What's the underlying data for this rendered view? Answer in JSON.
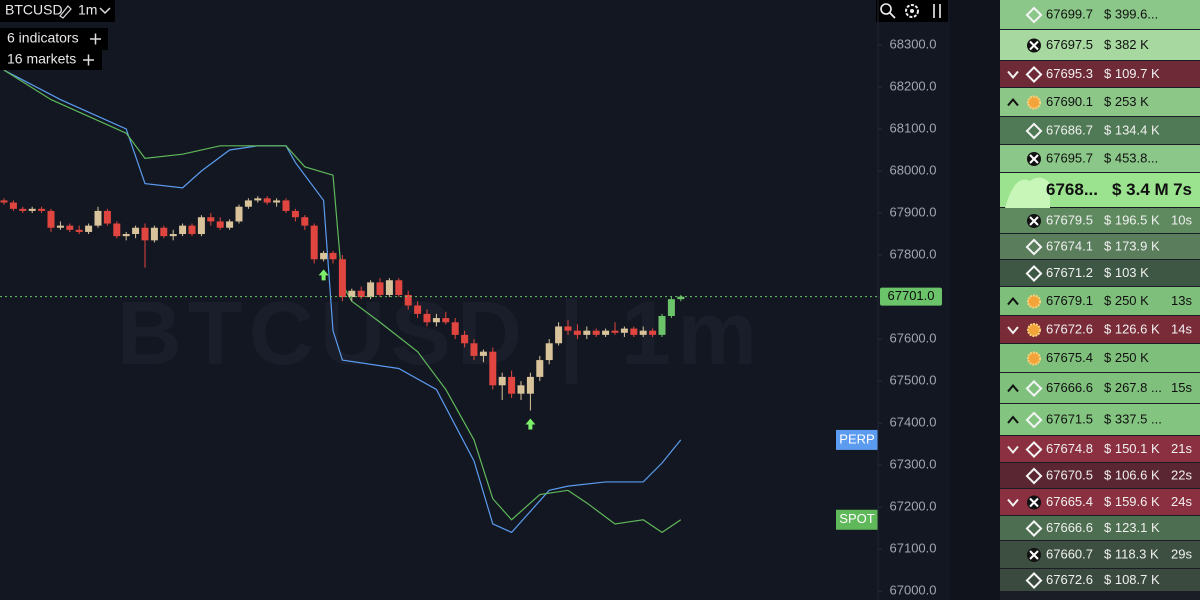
{
  "header": {
    "symbol": "BTCUSD",
    "timeframe": "1m",
    "indicators": "6 indicators",
    "markets": "16 markets"
  },
  "chart": {
    "watermark": "BTCUSD | 1m",
    "ylim": [
      66979,
      68407
    ],
    "yticks": [
      {
        "value": 67000,
        "label": "67000.0"
      },
      {
        "value": 67100,
        "label": "67100.0"
      },
      {
        "value": 67200,
        "label": "67200.0"
      },
      {
        "value": 67300,
        "label": "67300.0"
      },
      {
        "value": 67400,
        "label": "67400.0"
      },
      {
        "value": 67500,
        "label": "67500.0"
      },
      {
        "value": 67600,
        "label": "67600.0"
      },
      {
        "value": 67700,
        "label": "67700.0"
      },
      {
        "value": 67800,
        "label": "67800.0"
      },
      {
        "value": 67900,
        "label": "67900.0"
      },
      {
        "value": 68000,
        "label": "68000.0"
      },
      {
        "value": 68100,
        "label": "68100.0"
      },
      {
        "value": 68200,
        "label": "68200.0"
      },
      {
        "value": 68300,
        "label": "68300.0"
      }
    ],
    "last_price": {
      "value": 67701,
      "label": "67701.0"
    },
    "last_color": "#6cc46a",
    "up_color": "#d8c39b",
    "down_color": "#e0463f",
    "signal_color": "#7cf06a",
    "candles": [
      [
        67930,
        67935,
        67920,
        67925
      ],
      [
        67925,
        67930,
        67905,
        67910
      ],
      [
        67910,
        67915,
        67900,
        67905
      ],
      [
        67905,
        67915,
        67900,
        67910
      ],
      [
        67910,
        67915,
        67900,
        67905
      ],
      [
        67905,
        67910,
        67855,
        67865
      ],
      [
        67865,
        67880,
        67860,
        67870
      ],
      [
        67870,
        67875,
        67855,
        67860
      ],
      [
        67860,
        67870,
        67850,
        67855
      ],
      [
        67855,
        67875,
        67850,
        67870
      ],
      [
        67870,
        67915,
        67865,
        67905
      ],
      [
        67905,
        67910,
        67870,
        67875
      ],
      [
        67875,
        67880,
        67840,
        67845
      ],
      [
        67845,
        67855,
        67835,
        67850
      ],
      [
        67850,
        67870,
        67840,
        67865
      ],
      [
        67865,
        67875,
        67770,
        67835
      ],
      [
        67835,
        67870,
        67830,
        67865
      ],
      [
        67865,
        67870,
        67840,
        67845
      ],
      [
        67845,
        67860,
        67835,
        67850
      ],
      [
        67850,
        67875,
        67845,
        67870
      ],
      [
        67870,
        67875,
        67845,
        67850
      ],
      [
        67850,
        67895,
        67845,
        67890
      ],
      [
        67890,
        67900,
        67870,
        67880
      ],
      [
        67880,
        67890,
        67860,
        67865
      ],
      [
        67865,
        67885,
        67860,
        67880
      ],
      [
        67880,
        67920,
        67875,
        67915
      ],
      [
        67915,
        67935,
        67910,
        67930
      ],
      [
        67930,
        67940,
        67925,
        67935
      ],
      [
        67935,
        67940,
        67920,
        67925
      ],
      [
        67925,
        67935,
        67915,
        67930
      ],
      [
        67930,
        67935,
        67900,
        67905
      ],
      [
        67905,
        67910,
        67880,
        67890
      ],
      [
        67890,
        67895,
        67860,
        67870
      ],
      [
        67870,
        67875,
        67780,
        67790
      ],
      [
        67790,
        67810,
        67785,
        67805
      ],
      [
        67805,
        67810,
        67780,
        67790
      ],
      [
        67790,
        67800,
        67690,
        67700
      ],
      [
        67700,
        67720,
        67690,
        67715
      ],
      [
        67715,
        67725,
        67695,
        67700
      ],
      [
        67700,
        67740,
        67695,
        67735
      ],
      [
        67735,
        67745,
        67700,
        67705
      ],
      [
        67705,
        67745,
        67700,
        67740
      ],
      [
        67740,
        67745,
        67700,
        67705
      ],
      [
        67705,
        67715,
        67670,
        67680
      ],
      [
        67680,
        67690,
        67650,
        67660
      ],
      [
        67660,
        67670,
        67630,
        67640
      ],
      [
        67640,
        67660,
        67630,
        67650
      ],
      [
        67650,
        67665,
        67635,
        67640
      ],
      [
        67640,
        67650,
        67600,
        67610
      ],
      [
        67610,
        67620,
        67580,
        67590
      ],
      [
        67590,
        67600,
        67550,
        67560
      ],
      [
        67560,
        67575,
        67545,
        67570
      ],
      [
        67570,
        67580,
        67480,
        67490
      ],
      [
        67490,
        67520,
        67455,
        67510
      ],
      [
        67510,
        67525,
        67460,
        67470
      ],
      [
        67470,
        67500,
        67455,
        67490
      ],
      [
        67470,
        67520,
        67430,
        67510
      ],
      [
        67510,
        67560,
        67500,
        67550
      ],
      [
        67550,
        67600,
        67540,
        67590
      ],
      [
        67590,
        67640,
        67585,
        67630
      ],
      [
        67630,
        67645,
        67610,
        67620
      ],
      [
        67620,
        67635,
        67600,
        67610
      ],
      [
        67610,
        67630,
        67600,
        67620
      ],
      [
        67620,
        67625,
        67605,
        67610
      ],
      [
        67610,
        67625,
        67605,
        67620
      ],
      [
        67620,
        67640,
        67610,
        67615
      ],
      [
        67615,
        67630,
        67605,
        67625
      ],
      [
        67625,
        67630,
        67605,
        67610
      ],
      [
        67610,
        67630,
        67605,
        67620
      ],
      [
        67620,
        67625,
        67605,
        67610
      ],
      [
        67610,
        67660,
        67605,
        67655
      ],
      [
        67655,
        67700,
        67650,
        67695
      ],
      [
        67695,
        67705,
        67690,
        67701
      ]
    ],
    "signals": [
      34,
      56
    ],
    "series": [
      {
        "name": "PERP",
        "color": "#5b9cf0",
        "x": [
          0,
          6,
          13,
          15,
          19,
          21,
          24,
          27,
          30,
          31,
          34,
          35,
          36,
          42,
          46,
          50,
          52,
          54,
          58,
          60,
          64,
          68,
          70,
          72
        ],
        "values": [
          68240,
          68170,
          68100,
          67970,
          67960,
          68000,
          68050,
          68060,
          68060,
          68020,
          67930,
          67620,
          67550,
          67530,
          67480,
          67310,
          67160,
          67140,
          67240,
          67250,
          67260,
          67260,
          67305,
          67360
        ]
      },
      {
        "name": "SPOT",
        "color": "#5fb85a",
        "x": [
          0,
          5,
          13,
          15,
          19,
          23,
          30,
          32,
          35,
          36,
          37,
          40,
          44,
          47,
          50,
          52,
          54,
          57,
          60,
          62,
          65,
          68,
          70,
          72
        ],
        "values": [
          68240,
          68170,
          68090,
          68030,
          68040,
          68060,
          68060,
          68010,
          67990,
          67730,
          67690,
          67640,
          67570,
          67480,
          67360,
          67220,
          67170,
          67230,
          67240,
          67210,
          67160,
          67170,
          67140,
          67170
        ]
      }
    ]
  },
  "trades": {
    "rows": [
      {
        "price": "67699.7",
        "amount": "$ 399.6..."
      },
      {
        "price": "67697.5",
        "amount": "$ 382 K"
      },
      {
        "price": "67695.3",
        "amount": "$ 109.7 K"
      },
      {
        "price": "67690.1",
        "amount": "$ 253 K"
      },
      {
        "price": "67686.7",
        "amount": "$ 134.4 K"
      },
      {
        "price": "67695.7",
        "amount": "$ 453.8..."
      },
      {
        "price": "6768...",
        "amount": "$ 3.4 M",
        "age": "7s"
      },
      {
        "price": "67679.5",
        "amount": "$ 196.5 K",
        "age": "10s"
      },
      {
        "price": "67674.1",
        "amount": "$ 173.9 K"
      },
      {
        "price": "67671.2",
        "amount": "$ 103 K"
      },
      {
        "price": "67679.1",
        "amount": "$ 250 K",
        "age": "13s"
      },
      {
        "price": "67672.6",
        "amount": "$ 126.6 K",
        "age": "14s"
      },
      {
        "price": "67675.4",
        "amount": "$ 250 K"
      },
      {
        "price": "67666.6",
        "amount": "$ 267.8 ...",
        "age": "15s"
      },
      {
        "price": "67671.5",
        "amount": "$ 337.5 ..."
      },
      {
        "price": "67674.8",
        "amount": "$ 150.1 K",
        "age": "21s"
      },
      {
        "price": "67670.5",
        "amount": "$ 106.6 K",
        "age": "22s"
      },
      {
        "price": "67665.4",
        "amount": "$ 159.6 K",
        "age": "24s"
      },
      {
        "price": "67666.6",
        "amount": "$ 123.1 K"
      },
      {
        "price": "67660.7",
        "amount": "$ 118.3 K",
        "age": "29s"
      },
      {
        "price": "67672.6",
        "amount": "$ 108.7 K"
      }
    ]
  }
}
